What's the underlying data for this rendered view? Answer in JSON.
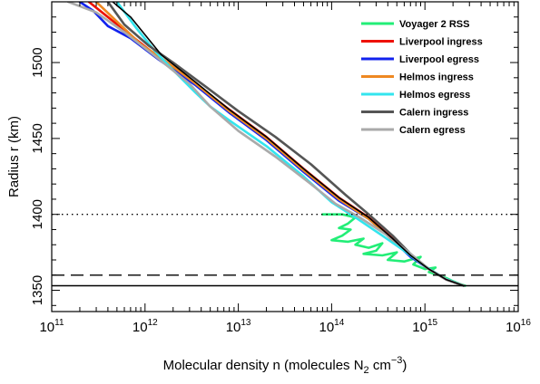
{
  "chart_data": {
    "type": "line",
    "xlabel": "Molecular density n (molecules N",
    "xlabel_sub": "2",
    "xlabel_mid": " cm",
    "xlabel_sup": "−3",
    "xlabel_end": ")",
    "ylabel": "Radius r (km)",
    "xscale": "log",
    "xlim": [
      100000000000.0,
      1e+16
    ],
    "ylim": [
      1336,
      1540
    ],
    "x_ticks": [
      {
        "base": "10",
        "exp": "11",
        "value": 100000000000.0
      },
      {
        "base": "10",
        "exp": "12",
        "value": 1000000000000.0
      },
      {
        "base": "10",
        "exp": "13",
        "value": 10000000000000.0
      },
      {
        "base": "10",
        "exp": "14",
        "value": 100000000000000.0
      },
      {
        "base": "10",
        "exp": "15",
        "value": 1000000000000000.0
      },
      {
        "base": "10",
        "exp": "16",
        "value": 1e+16
      }
    ],
    "y_ticks": [
      {
        "label": "1350",
        "value": 1350
      },
      {
        "label": "1400",
        "value": 1400
      },
      {
        "label": "1450",
        "value": 1450
      },
      {
        "label": "1500",
        "value": 1500
      }
    ],
    "grid": false,
    "legend_position": "top-right",
    "hlines": [
      {
        "y": 1400,
        "style": "dotted"
      },
      {
        "y": 1360,
        "style": "dashed"
      },
      {
        "y": 1353,
        "style": "solid"
      }
    ],
    "series": [
      {
        "name": "Voyager 2 RSS",
        "color": "#22ee77",
        "points": [
          [
            80000000000000.0,
            1400
          ],
          [
            130000000000000.0,
            1400
          ],
          [
            180000000000000.0,
            1398
          ],
          [
            150000000000000.0,
            1394
          ],
          [
            120000000000000.0,
            1391
          ],
          [
            160000000000000.0,
            1390
          ],
          [
            130000000000000.0,
            1386
          ],
          [
            100000000000000.0,
            1383
          ],
          [
            150000000000000.0,
            1382
          ],
          [
            220000000000000.0,
            1384
          ],
          [
            180000000000000.0,
            1380
          ],
          [
            250000000000000.0,
            1378
          ],
          [
            350000000000000.0,
            1381
          ],
          [
            300000000000000.0,
            1376
          ],
          [
            220000000000000.0,
            1374
          ],
          [
            350000000000000.0,
            1373
          ],
          [
            500000000000000.0,
            1375
          ],
          [
            400000000000000.0,
            1370
          ],
          [
            600000000000000.0,
            1369
          ],
          [
            900000000000000.0,
            1372
          ],
          [
            750000000000000.0,
            1367
          ],
          [
            1000000000000000.0,
            1364
          ],
          [
            1300000000000000.0,
            1365
          ],
          [
            1100000000000000.0,
            1362
          ],
          [
            1400000000000000.0,
            1360
          ],
          [
            1700000000000000.0,
            1358
          ],
          [
            2000000000000000.0,
            1356
          ],
          [
            2400000000000000.0,
            1354
          ],
          [
            2700000000000000.0,
            1353
          ]
        ]
      },
      {
        "name": "Liverpool ingress",
        "color": "#ee1100",
        "points": [
          [
            250000000000.0,
            1540
          ],
          [
            400000000000.0,
            1530
          ],
          [
            700000000000.0,
            1518
          ],
          [
            1500000000000.0,
            1502
          ],
          [
            3500000000000.0,
            1486
          ],
          [
            8000000000000.0,
            1469
          ],
          [
            20000000000000.0,
            1451
          ],
          [
            50000000000000.0,
            1430
          ],
          [
            120000000000000.0,
            1411
          ],
          [
            250000000000000.0,
            1398
          ],
          [
            450000000000000.0,
            1384
          ],
          [
            700000000000000.0,
            1373
          ],
          [
            1100000000000000.0,
            1364
          ],
          [
            1700000000000000.0,
            1357
          ],
          [
            2600000000000000.0,
            1353
          ]
        ]
      },
      {
        "name": "Liverpool egress",
        "color": "#1122ee",
        "points": [
          [
            200000000000.0,
            1540
          ],
          [
            280000000000.0,
            1534
          ],
          [
            400000000000.0,
            1524
          ],
          [
            700000000000.0,
            1516
          ],
          [
            1400000000000.0,
            1502
          ],
          [
            3500000000000.0,
            1485
          ],
          [
            8000000000000.0,
            1467
          ],
          [
            20000000000000.0,
            1449
          ],
          [
            50000000000000.0,
            1428
          ],
          [
            120000000000000.0,
            1409
          ],
          [
            250000000000000.0,
            1397
          ],
          [
            450000000000000.0,
            1383
          ],
          [
            700000000000000.0,
            1372
          ],
          [
            1100000000000000.0,
            1364
          ],
          [
            1700000000000000.0,
            1357
          ],
          [
            2600000000000000.0,
            1353
          ]
        ]
      },
      {
        "name": "Helmos ingress",
        "color": "#ee8822",
        "points": [
          [
            300000000000.0,
            1540
          ],
          [
            500000000000.0,
            1527
          ],
          [
            900000000000.0,
            1512
          ],
          [
            1500000000000.0,
            1503
          ],
          [
            3500000000000.0,
            1486
          ],
          [
            8000000000000.0,
            1468
          ],
          [
            20000000000000.0,
            1450
          ],
          [
            50000000000000.0,
            1429
          ],
          [
            120000000000000.0,
            1410
          ],
          [
            250000000000000.0,
            1397
          ],
          [
            450000000000000.0,
            1383
          ],
          [
            700000000000000.0,
            1373
          ],
          [
            1100000000000000.0,
            1364
          ],
          [
            1700000000000000.0,
            1357
          ],
          [
            2600000000000000.0,
            1353
          ]
        ]
      },
      {
        "name": "Helmos egress",
        "color": "#33e5ee",
        "points": [
          [
            500000000000.0,
            1540
          ],
          [
            800000000000.0,
            1523
          ],
          [
            1300000000000.0,
            1507
          ],
          [
            2000000000000.0,
            1495
          ],
          [
            3500000000000.0,
            1480
          ],
          [
            5000000000000.0,
            1471
          ],
          [
            8000000000000.0,
            1462
          ],
          [
            20000000000000.0,
            1445
          ],
          [
            50000000000000.0,
            1425
          ],
          [
            100000000000000.0,
            1408
          ],
          [
            180000000000000.0,
            1398
          ],
          [
            350000000000000.0,
            1386
          ],
          [
            600000000000000.0,
            1376
          ],
          [
            1000000000000000.0,
            1366
          ],
          [
            1600000000000000.0,
            1358
          ],
          [
            2600000000000000.0,
            1353
          ]
        ]
      },
      {
        "name": "Calern ingress",
        "color": "#555555",
        "points": [
          [
            400000000000.0,
            1540
          ],
          [
            600000000000.0,
            1525
          ],
          [
            1100000000000.0,
            1511
          ],
          [
            2000000000000.0,
            1500
          ],
          [
            4500000000000.0,
            1484
          ],
          [
            10000000000000.0,
            1468
          ],
          [
            25000000000000.0,
            1451
          ],
          [
            60000000000000.0,
            1433
          ],
          [
            140000000000000.0,
            1413
          ],
          [
            250000000000000.0,
            1400
          ],
          [
            450000000000000.0,
            1386
          ],
          [
            700000000000000.0,
            1374
          ],
          [
            1100000000000000.0,
            1364
          ],
          [
            1700000000000000.0,
            1357
          ],
          [
            2600000000000000.0,
            1353
          ]
        ]
      },
      {
        "name": "Calern egress",
        "color": "#aaaaaa",
        "points": [
          [
            150000000000.0,
            1540
          ],
          [
            300000000000.0,
            1533
          ],
          [
            600000000000.0,
            1520
          ],
          [
            1300000000000.0,
            1504
          ],
          [
            3000000000000.0,
            1486
          ],
          [
            5000000000000.0,
            1471
          ],
          [
            10000000000000.0,
            1455
          ],
          [
            25000000000000.0,
            1438
          ],
          [
            60000000000000.0,
            1420
          ],
          [
            110000000000000.0,
            1407
          ],
          [
            200000000000000.0,
            1398
          ],
          [
            400000000000000.0,
            1386
          ],
          [
            700000000000000.0,
            1374
          ],
          [
            1100000000000000.0,
            1364
          ],
          [
            1700000000000000.0,
            1357
          ],
          [
            2600000000000000.0,
            1353
          ]
        ]
      },
      {
        "name": "",
        "color": "#000000",
        "points": [
          [
            450000000000.0,
            1540
          ],
          [
            700000000000.0,
            1530
          ],
          [
            1500000000000.0,
            1505
          ],
          [
            3500000000000.0,
            1487
          ],
          [
            8000000000000.0,
            1469
          ],
          [
            20000000000000.0,
            1451
          ],
          [
            50000000000000.0,
            1430
          ],
          [
            120000000000000.0,
            1411
          ],
          [
            250000000000000.0,
            1398
          ],
          [
            450000000000000.0,
            1384
          ],
          [
            700000000000000.0,
            1373
          ],
          [
            1100000000000000.0,
            1364
          ],
          [
            1700000000000000.0,
            1357
          ],
          [
            2600000000000000.0,
            1353
          ]
        ]
      }
    ]
  }
}
